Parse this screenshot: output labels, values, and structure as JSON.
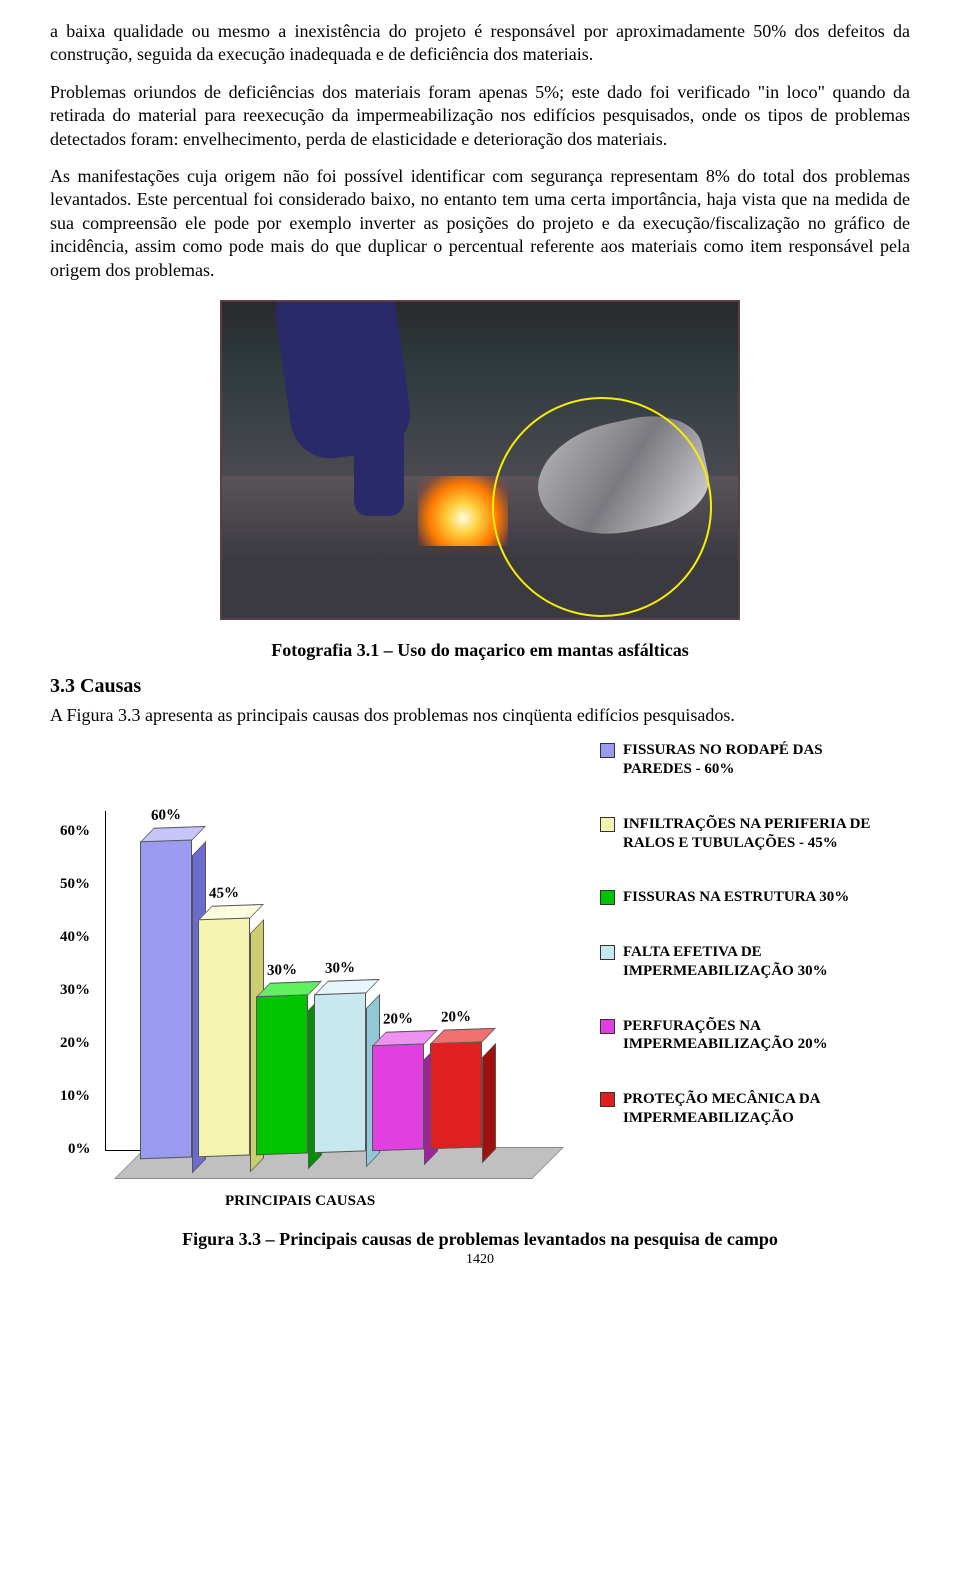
{
  "paragraphs": {
    "p1": "a baixa qualidade ou mesmo a inexistência do projeto é responsável por aproximadamente 50% dos defeitos da construção, seguida da execução inadequada e de deficiência dos materiais.",
    "p2": "Problemas oriundos de deficiências dos materiais foram apenas 5%; este dado foi verificado \"in loco\" quando da retirada do material para reexecução da impermeabilização nos edifícios pesquisados, onde os tipos de problemas detectados foram: envelhecimento, perda de elasticidade e deterioração dos materiais.",
    "p3": "As manifestações cuja origem não foi possível identificar com segurança representam 8% do total dos problemas levantados. Este percentual foi considerado baixo, no entanto tem uma certa importância, haja vista que na medida de sua compreensão ele pode por exemplo inverter as posições do projeto e da execução/fiscalização no gráfico de incidência, assim como pode mais do que duplicar o percentual referente aos materiais como item responsável pela origem dos problemas."
  },
  "photo_caption": "Fotografia 3.1 – Uso do maçarico em mantas asfálticas",
  "section_title": "3.3  Causas",
  "section_text": "A Figura 3.3 apresenta as principais causas dos problemas nos cinqüenta edifícios pesquisados.",
  "chart": {
    "type": "bar",
    "x_title": "PRINCIPAIS CAUSAS",
    "y_ticks": [
      "0%",
      "10%",
      "20%",
      "30%",
      "40%",
      "50%",
      "60%"
    ],
    "y_max": 60,
    "bars": [
      {
        "label": "60%",
        "value": 60,
        "front": "#9a9af0",
        "top": "#c6c6fa",
        "side": "#6a6ad0"
      },
      {
        "label": "45%",
        "value": 45,
        "front": "#f4f4b0",
        "top": "#fcfce0",
        "side": "#cccc70"
      },
      {
        "label": "30%",
        "value": 30,
        "front": "#00c400",
        "top": "#60f060",
        "side": "#009000"
      },
      {
        "label": "30%",
        "value": 30,
        "front": "#c8e8f0",
        "top": "#e6f6fa",
        "side": "#90c8d8"
      },
      {
        "label": "20%",
        "value": 20,
        "front": "#e040e0",
        "top": "#f090f0",
        "side": "#a020a0"
      },
      {
        "label": "20%",
        "value": 20,
        "front": "#e02020",
        "top": "#f07070",
        "side": "#a01010"
      }
    ],
    "legend": [
      {
        "color": "#9a9af0",
        "text": "FISSURAS NO RODAPÉ DAS PAREDES - 60%"
      },
      {
        "color": "#f4f4b0",
        "text": "INFILTRAÇÕES NA PERIFERIA DE RALOS E TUBULAÇÕES - 45%"
      },
      {
        "color": "#00c400",
        "text": "FISSURAS NA ESTRUTURA 30%"
      },
      {
        "color": "#c8e8f0",
        "text": "FALTA EFETIVA DE IMPERMEABILIZAÇÃO 30%"
      },
      {
        "color": "#e040e0",
        "text": "PERFURAÇÕES NA IMPERMEABILIZAÇÃO 20%"
      },
      {
        "color": "#e02020",
        "text": "PROTEÇÃO MECÂNICA DA IMPERMEABILIZAÇÃO"
      }
    ],
    "label_fontsize": 15,
    "background_color": "#ffffff",
    "floor_color": "#c0c0c0"
  },
  "figure_caption": "Figura 3.3 – Principais causas de problemas levantados na pesquisa de campo",
  "page_number": "1420"
}
